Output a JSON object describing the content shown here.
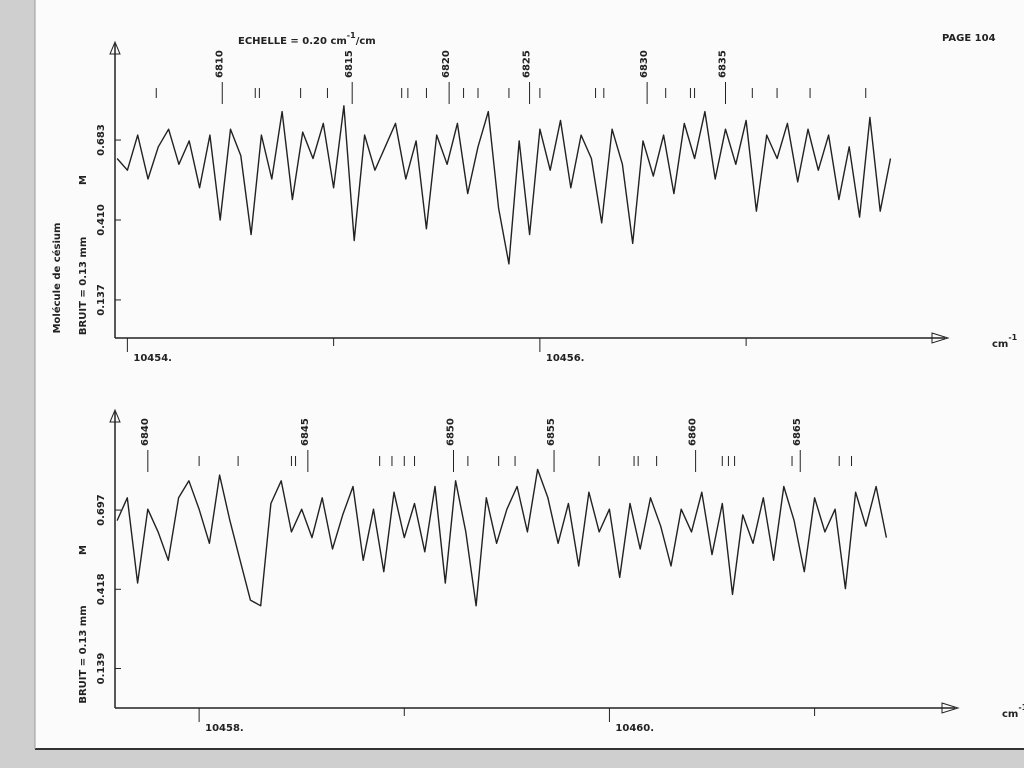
{
  "page": "PAGE 104",
  "echelle": {
    "text": "ECHELLE = 0.20 cm",
    "sup": "-1",
    "tail": "/cm"
  },
  "molecule": "Molécule de césium",
  "chart_data": [
    {
      "type": "line",
      "noise_label": "BRUIT = 0.13 mm",
      "y_label": "M",
      "x_label": "cm",
      "x_label_sup": "-1",
      "color": "#222222",
      "xlim": [
        10453.94,
        10457.94
      ],
      "ylim": [
        0.007,
        0.97
      ],
      "xticks": [
        {
          "value": 10454,
          "label": "10454."
        },
        {
          "value": 10456,
          "label": "10456."
        }
      ],
      "xminor": [
        10455,
        10457
      ],
      "yticks": [
        0.137,
        {
          "value": 0.41,
          "label": "0.410"
        },
        0.683
      ],
      "line_markers": [
        {
          "x": 10454.46,
          "label": 6810
        },
        {
          "x": 10455.09,
          "label": 6815
        },
        {
          "x": 10455.56,
          "label": 6820
        },
        {
          "x": 10455.95,
          "label": 6825
        },
        {
          "x": 10456.52,
          "label": 6830
        },
        {
          "x": 10456.9,
          "label": 6835
        }
      ],
      "minor_markers": [
        10454.14,
        10454.62,
        10454.64,
        10454.84,
        10454.97,
        10455.33,
        10455.36,
        10455.45,
        10455.63,
        10455.7,
        10455.85,
        10456.0,
        10456.27,
        10456.31,
        10456.61,
        10456.73,
        10456.75,
        10457.03,
        10457.15,
        10457.31,
        10457.58
      ],
      "x": [
        10453.95,
        10454.0,
        10454.05,
        10454.1,
        10454.15,
        10454.2,
        10454.25,
        10454.3,
        10454.35,
        10454.4,
        10454.45,
        10454.5,
        10454.55,
        10454.6,
        10454.65,
        10454.7,
        10454.75,
        10454.8,
        10454.85,
        10454.9,
        10454.95,
        10455.0,
        10455.05,
        10455.1,
        10455.15,
        10455.2,
        10455.25,
        10455.3,
        10455.35,
        10455.4,
        10455.45,
        10455.5,
        10455.55,
        10455.6,
        10455.65,
        10455.7,
        10455.75,
        10455.8,
        10455.85,
        10455.9,
        10455.95,
        10456.0,
        10456.05,
        10456.1,
        10456.15,
        10456.2,
        10456.25,
        10456.3,
        10456.35,
        10456.4,
        10456.45,
        10456.5,
        10456.55,
        10456.6,
        10456.65,
        10456.7,
        10456.75,
        10456.8,
        10456.85,
        10456.9,
        10456.95,
        10457.0,
        10457.05,
        10457.1,
        10457.15,
        10457.2,
        10457.25,
        10457.3,
        10457.35,
        10457.4,
        10457.45,
        10457.5,
        10457.55,
        10457.6,
        10457.65,
        10457.7
      ],
      "values": [
        0.62,
        0.58,
        0.7,
        0.55,
        0.66,
        0.72,
        0.6,
        0.68,
        0.52,
        0.7,
        0.41,
        0.72,
        0.63,
        0.36,
        0.7,
        0.55,
        0.78,
        0.48,
        0.71,
        0.62,
        0.74,
        0.52,
        0.8,
        0.34,
        0.7,
        0.58,
        0.66,
        0.74,
        0.55,
        0.68,
        0.38,
        0.7,
        0.6,
        0.74,
        0.5,
        0.66,
        0.78,
        0.45,
        0.26,
        0.68,
        0.36,
        0.72,
        0.58,
        0.75,
        0.52,
        0.7,
        0.62,
        0.4,
        0.72,
        0.6,
        0.33,
        0.68,
        0.56,
        0.7,
        0.5,
        0.74,
        0.62,
        0.78,
        0.55,
        0.72,
        0.6,
        0.75,
        0.44,
        0.7,
        0.62,
        0.74,
        0.54,
        0.72,
        0.58,
        0.7,
        0.48,
        0.66,
        0.42,
        0.76,
        0.44,
        0.62
      ]
    },
    {
      "type": "line",
      "noise_label": "BRUIT = 0.13 mm",
      "y_label": "M",
      "x_label": "cm",
      "x_label_sup": "-1",
      "color": "#222222",
      "xlim": [
        10457.59,
        10461.66
      ],
      "ylim": [
        0,
        1.0
      ],
      "xticks": [
        {
          "value": 10458,
          "label": "10458."
        },
        {
          "value": 10460,
          "label": "10460."
        }
      ],
      "xminor": [
        10459,
        10461
      ],
      "yticks": [
        0.139,
        0.418,
        0.697
      ],
      "line_markers": [
        {
          "x": 10457.75,
          "label": 6840
        },
        {
          "x": 10458.53,
          "label": 6845
        },
        {
          "x": 10459.24,
          "label": 6850
        },
        {
          "x": 10459.73,
          "label": 6855
        },
        {
          "x": 10460.42,
          "label": 6860
        },
        {
          "x": 10460.93,
          "label": 6865
        }
      ],
      "minor_markers": [
        10458.0,
        10458.19,
        10458.45,
        10458.47,
        10458.88,
        10458.94,
        10459.0,
        10459.05,
        10459.31,
        10459.46,
        10459.54,
        10459.95,
        10460.12,
        10460.14,
        10460.23,
        10460.55,
        10460.58,
        10460.61,
        10460.89,
        10461.12,
        10461.18
      ],
      "x": [
        10457.6,
        10457.65,
        10457.7,
        10457.75,
        10457.8,
        10457.85,
        10457.9,
        10457.95,
        10458.0,
        10458.05,
        10458.1,
        10458.15,
        10458.2,
        10458.25,
        10458.3,
        10458.35,
        10458.4,
        10458.45,
        10458.5,
        10458.55,
        10458.6,
        10458.65,
        10458.7,
        10458.75,
        10458.8,
        10458.85,
        10458.9,
        10458.95,
        10459.0,
        10459.05,
        10459.1,
        10459.15,
        10459.2,
        10459.25,
        10459.3,
        10459.35,
        10459.4,
        10459.45,
        10459.5,
        10459.55,
        10459.6,
        10459.65,
        10459.7,
        10459.75,
        10459.8,
        10459.85,
        10459.9,
        10459.95,
        10460.0,
        10460.05,
        10460.1,
        10460.15,
        10460.2,
        10460.25,
        10460.3,
        10460.35,
        10460.4,
        10460.45,
        10460.5,
        10460.55,
        10460.6,
        10460.65,
        10460.7,
        10460.75,
        10460.8,
        10460.85,
        10460.9,
        10460.95,
        10461.0,
        10461.05,
        10461.1,
        10461.15,
        10461.2,
        10461.25,
        10461.3,
        10461.35
      ],
      "values": [
        0.66,
        0.74,
        0.44,
        0.7,
        0.62,
        0.52,
        0.74,
        0.8,
        0.7,
        0.58,
        0.82,
        0.66,
        0.52,
        0.38,
        0.36,
        0.72,
        0.8,
        0.62,
        0.7,
        0.6,
        0.74,
        0.56,
        0.68,
        0.78,
        0.52,
        0.7,
        0.48,
        0.76,
        0.6,
        0.72,
        0.55,
        0.78,
        0.44,
        0.8,
        0.62,
        0.36,
        0.74,
        0.58,
        0.7,
        0.78,
        0.62,
        0.84,
        0.74,
        0.58,
        0.72,
        0.5,
        0.76,
        0.62,
        0.7,
        0.46,
        0.72,
        0.56,
        0.74,
        0.64,
        0.5,
        0.7,
        0.62,
        0.76,
        0.54,
        0.72,
        0.4,
        0.68,
        0.58,
        0.74,
        0.52,
        0.78,
        0.66,
        0.48,
        0.74,
        0.62,
        0.7,
        0.42,
        0.76,
        0.64,
        0.78,
        0.6
      ]
    }
  ]
}
